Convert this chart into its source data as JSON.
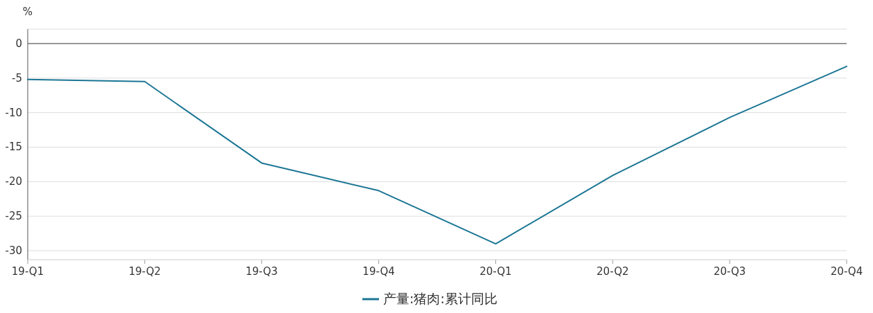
{
  "chart_data": {
    "type": "line",
    "ylabel": "%",
    "categories": [
      "19-Q1",
      "19-Q2",
      "19-Q3",
      "19-Q4",
      "20-Q1",
      "20-Q2",
      "20-Q3",
      "20-Q4"
    ],
    "series": [
      {
        "name": "产量:猪肉:累计同比",
        "color": "#1a7594",
        "values": [
          -5.2,
          -5.5,
          -17.3,
          -21.3,
          -29.0,
          -19.1,
          -10.7,
          -3.3
        ]
      }
    ],
    "ylim": [
      -31.3,
      2.1
    ],
    "yticks": [
      0,
      -5,
      -10,
      -15,
      -20,
      -25,
      -30
    ],
    "grid": "y",
    "legend": "bottom",
    "marker": "none",
    "line_style": "solid"
  }
}
